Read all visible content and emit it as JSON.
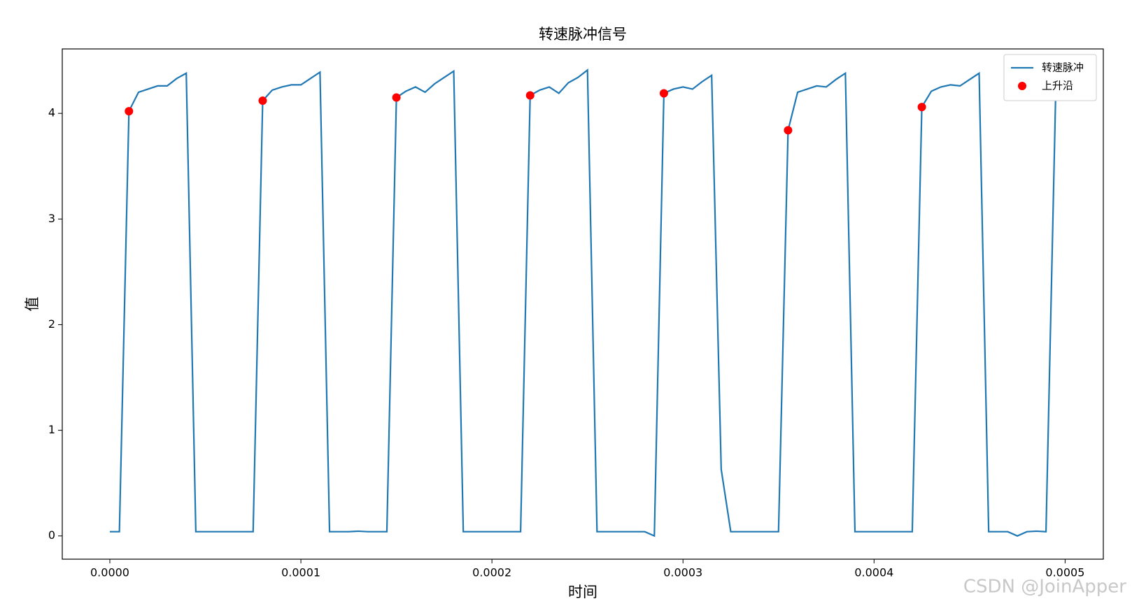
{
  "chart_data": {
    "type": "line",
    "title": "转速脉冲信号",
    "xlabel": "时间",
    "ylabel": "值",
    "xlim": [
      -2.49e-05,
      0.00052
    ],
    "ylim": [
      -0.22,
      4.61
    ],
    "xticks": [
      {
        "value": 0,
        "label": "0.0000"
      },
      {
        "value": 0.0001,
        "label": "0.0001"
      },
      {
        "value": 0.0002,
        "label": "0.0002"
      },
      {
        "value": 0.0003,
        "label": "0.0003"
      },
      {
        "value": 0.0004,
        "label": "0.0004"
      },
      {
        "value": 0.0005,
        "label": "0.0005"
      }
    ],
    "yticks": [
      0,
      1,
      2,
      3,
      4
    ],
    "grid": false,
    "legend": "upper right",
    "watermark": "CSDN @JoinApper",
    "series": [
      {
        "name": "转速脉冲",
        "type": "line",
        "color": "#1f77b4",
        "x": [
          0,
          5e-06,
          1e-05,
          1.5e-05,
          2e-05,
          2.5e-05,
          3e-05,
          3.5e-05,
          4e-05,
          4.5e-05,
          5e-05,
          5.5e-05,
          6e-05,
          6.5e-05,
          7e-05,
          7.5e-05,
          8e-05,
          8.5e-05,
          9e-05,
          9.5e-05,
          0.0001,
          0.000105,
          0.00011,
          0.000115,
          0.00012,
          0.000125,
          0.00013,
          0.000135,
          0.00014,
          0.000145,
          0.00015,
          0.000155,
          0.00016,
          0.000165,
          0.00017,
          0.000175,
          0.00018,
          0.000185,
          0.00019,
          0.000195,
          0.0002,
          0.000205,
          0.00021,
          0.000215,
          0.00022,
          0.000225,
          0.00023,
          0.000235,
          0.00024,
          0.000245,
          0.00025,
          0.000255,
          0.00026,
          0.000265,
          0.00027,
          0.000275,
          0.00028,
          0.000285,
          0.00029,
          0.000295,
          0.0003,
          0.000305,
          0.00031,
          0.000315,
          0.00032,
          0.000325,
          0.00033,
          0.000335,
          0.00034,
          0.000345,
          0.00035,
          0.000355,
          0.00036,
          0.000365,
          0.00037,
          0.000375,
          0.00038,
          0.000385,
          0.00039,
          0.000395,
          0.0004,
          0.000405,
          0.00041,
          0.000415,
          0.00042,
          0.000425,
          0.00043,
          0.000435,
          0.00044,
          0.000445,
          0.00045,
          0.000455,
          0.00046,
          0.000465,
          0.00047,
          0.000475,
          0.00048,
          0.000485,
          0.00049,
          0.000495
        ],
        "values": [
          0.04,
          0.04,
          4.02,
          4.2,
          4.23,
          4.26,
          4.26,
          4.33,
          4.38,
          0.04,
          0.04,
          0.04,
          0.04,
          0.04,
          0.04,
          0.04,
          4.12,
          4.22,
          4.25,
          4.27,
          4.27,
          4.33,
          4.39,
          0.04,
          0.04,
          0.04,
          0.045,
          0.04,
          0.04,
          0.04,
          4.15,
          4.21,
          4.25,
          4.2,
          4.28,
          4.34,
          4.4,
          0.04,
          0.04,
          0.04,
          0.04,
          0.04,
          0.04,
          0.04,
          4.17,
          4.22,
          4.25,
          4.19,
          4.29,
          4.34,
          4.41,
          0.04,
          0.04,
          0.04,
          0.04,
          0.04,
          0.04,
          0.0,
          4.19,
          4.23,
          4.25,
          4.23,
          4.3,
          4.36,
          0.63,
          0.04,
          0.04,
          0.04,
          0.04,
          0.04,
          0.04,
          3.84,
          4.2,
          4.23,
          4.26,
          4.25,
          4.32,
          4.38,
          0.04,
          0.04,
          0.04,
          0.04,
          0.04,
          0.04,
          0.04,
          4.06,
          4.21,
          4.25,
          4.27,
          4.26,
          4.32,
          4.38,
          0.04,
          0.04,
          0.04,
          0.0,
          0.04,
          0.045,
          0.04,
          4.13
        ]
      },
      {
        "name": "上升沿",
        "type": "scatter",
        "color": "#ff0000",
        "x": [
          1e-05,
          8e-05,
          0.00015,
          0.00022,
          0.00029,
          0.000355,
          0.000425
        ],
        "values": [
          4.02,
          4.12,
          4.15,
          4.17,
          4.19,
          3.84,
          4.06
        ]
      }
    ]
  }
}
